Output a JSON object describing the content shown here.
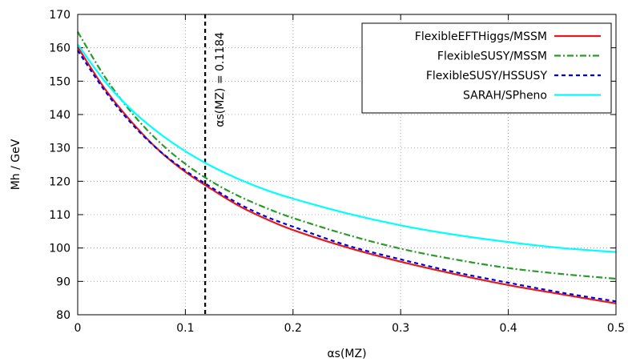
{
  "chart_data": {
    "type": "line",
    "xlabel": "αs(MZ)",
    "ylabel": "Mh / GeV",
    "xlim": [
      0,
      0.5
    ],
    "ylim": [
      80,
      170
    ],
    "xticks": [
      "0",
      "0.1",
      "0.2",
      "0.3",
      "0.4",
      "0.5"
    ],
    "yticks": [
      "80",
      "90",
      "100",
      "110",
      "120",
      "130",
      "140",
      "150",
      "160",
      "170"
    ],
    "grid": true,
    "legend_position": "top-right",
    "annotation": {
      "text": "αs(MZ) = 0.1184",
      "x": 0.1184
    },
    "series": [
      {
        "name": "FlexibleEFTHiggs/MSSM",
        "color": "#e41a1c",
        "dash": "solid",
        "x": [
          0,
          0.025,
          0.05,
          0.075,
          0.1,
          0.125,
          0.15,
          0.175,
          0.2,
          0.25,
          0.3,
          0.35,
          0.4,
          0.45,
          0.5
        ],
        "y": [
          160.2,
          147.8,
          137.8,
          129.4,
          122.8,
          117.5,
          112.6,
          108.7,
          105.4,
          100.2,
          95.9,
          92.2,
          88.9,
          86.1,
          83.4
        ]
      },
      {
        "name": "FlexibleSUSY/MSSM",
        "color": "#2a9a2a",
        "dash": "dashdot",
        "x": [
          0,
          0.025,
          0.05,
          0.075,
          0.1,
          0.125,
          0.15,
          0.175,
          0.2,
          0.25,
          0.3,
          0.35,
          0.4,
          0.45,
          0.5
        ],
        "y": [
          164.8,
          151.4,
          140.6,
          132.0,
          125.2,
          119.8,
          115.5,
          112.0,
          109.0,
          104.0,
          99.8,
          96.6,
          94.0,
          92.2,
          90.8
        ]
      },
      {
        "name": "FlexibleSUSY/HSSUSY",
        "color": "#0000dd",
        "dash": "dashed",
        "x": [
          0,
          0.025,
          0.05,
          0.075,
          0.1,
          0.125,
          0.15,
          0.175,
          0.2,
          0.25,
          0.3,
          0.35,
          0.4,
          0.45,
          0.5
        ],
        "y": [
          159.2,
          147.2,
          137.3,
          129.4,
          123.2,
          118.0,
          113.2,
          109.4,
          106.4,
          100.8,
          96.6,
          92.8,
          89.6,
          86.6,
          84.0
        ]
      },
      {
        "name": "SARAH/SPheno",
        "color": "#00ffff",
        "dash": "solid",
        "x": [
          0,
          0.025,
          0.05,
          0.075,
          0.1,
          0.125,
          0.15,
          0.175,
          0.2,
          0.25,
          0.3,
          0.35,
          0.4,
          0.45,
          0.5
        ],
        "y": [
          161.0,
          150.0,
          141.4,
          134.6,
          129.0,
          124.4,
          120.6,
          117.4,
          114.8,
          110.4,
          106.8,
          104.0,
          101.8,
          100.0,
          98.8
        ]
      }
    ]
  }
}
